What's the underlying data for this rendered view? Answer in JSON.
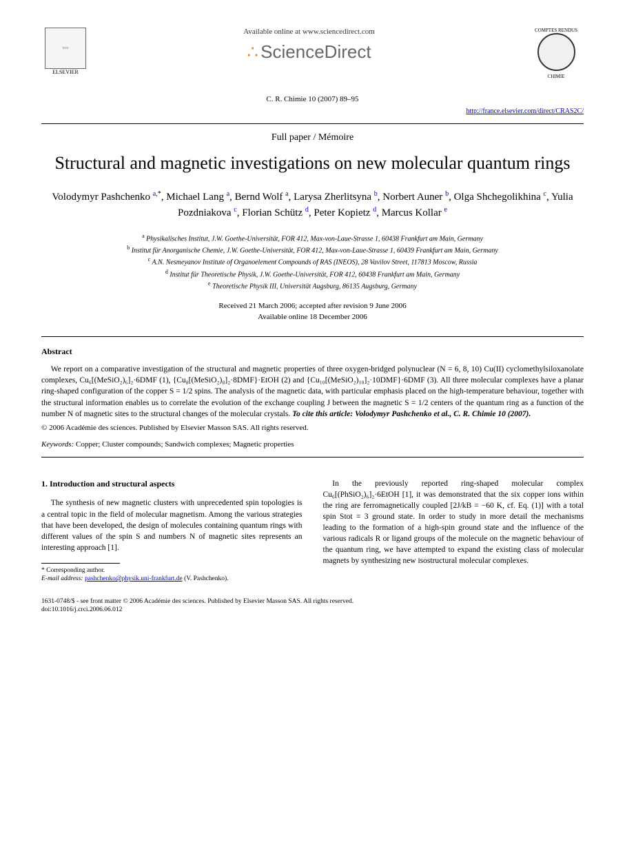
{
  "header": {
    "elsevier_label": "ELSEVIER",
    "available_online": "Available online at www.sciencedirect.com",
    "sd_brand": "ScienceDirect",
    "journal_top": "COMPTES RENDUS",
    "journal_bottom": "CHIMIE",
    "citation": "C. R. Chimie 10 (2007) 89–95",
    "journal_url": "http://france.elsevier.com/direct/CRAS2C/"
  },
  "paper_type": "Full paper / Mémoire",
  "title": "Structural and magnetic investigations on new molecular quantum rings",
  "authors_html": "Volodymyr Pashchenko <sup>a,</sup><sup class=\"star\">*</sup>, Michael Lang <sup>a</sup>, Bernd Wolf <sup>a</sup>, Larysa Zherlitsyna <sup>b</sup>, Norbert Auner <sup>b</sup>, Olga Shchegolikhina <sup>c</sup>, Yulia Pozdniakova <sup>c</sup>, Florian Schütz <sup>d</sup>, Peter Kopietz <sup>d</sup>, Marcus Kollar <sup>e</sup>",
  "affiliations": {
    "a": "Physikalisches Institut, J.W. Goethe-Universität, FOR 412, Max-von-Laue-Strasse 1, 60438 Frankfurt am Main, Germany",
    "b": "Institut für Anorganische Chemie, J.W. Goethe-Universität, FOR 412, Max-von-Laue-Strasse 1, 60439 Frankfurt am Main, Germany",
    "c": "A.N. Nesmeyanov Institute of Organoelement Compounds of RAS (INEOS), 28 Vavilov Street, 117813 Moscow, Russia",
    "d": "Institut für Theoretische Physik, J.W. Goethe-Universität, FOR 412, 60438 Frankfurt am Main, Germany",
    "e": "Theoretische Physik III, Universität Augsburg, 86135 Augsburg, Germany"
  },
  "dates": {
    "received": "Received 21 March 2006; accepted after revision 9 June 2006",
    "online": "Available online 18 December 2006"
  },
  "abstract": {
    "heading": "Abstract",
    "text": "We report on a comparative investigation of the structural and magnetic properties of three oxygen-bridged polynuclear (N = 6, 8, 10) Cu(II) cyclomethylsiloxanolate complexes, Cu₆[(MeSiO₂)₆]₂·6DMF (1), {Cu₈[(MeSiO₂)₈]₂·8DMF}·EtOH (2) and {Cu₁₀[(MeSiO₂)₁₀]₂·10DMF}·6DMF (3). All three molecular complexes have a planar ring-shaped configuration of the copper S = 1/2 spins. The analysis of the magnetic data, with particular emphasis placed on the high-temperature behaviour, together with the structural information enables us to correlate the evolution of the exchange coupling J between the magnetic S = 1/2 centers of the quantum ring as a function of the number N of magnetic sites to the structural changes of the molecular crystals.",
    "cite_this": "To cite this article: Volodymyr Pashchenko et al., C. R. Chimie 10 (2007).",
    "copyright": "© 2006 Académie des sciences. Published by Elsevier Masson SAS. All rights reserved."
  },
  "keywords": {
    "label": "Keywords:",
    "text": "Copper; Cluster compounds; Sandwich complexes; Magnetic properties"
  },
  "body": {
    "section1_heading": "1. Introduction and structural aspects",
    "col1_p1": "The synthesis of new magnetic clusters with unprecedented spin topologies is a central topic in the field of molecular magnetism. Among the various strategies that have been developed, the design of molecules containing quantum rings with different values of the spin S and numbers N of magnetic sites represents an interesting approach [1].",
    "col2_p1": "In the previously reported ring-shaped molecular complex Cu₆[(PhSiO₂)₆]₂·6EtOH [1], it was demonstrated that the six copper ions within the ring are ferromagnetically coupled [2J/kB = −60 K, cf. Eq. (1)] with a total spin Stot = 3 ground state. In order to study in more detail the mechanisms leading to the formation of a high-spin ground state and the influence of the various radicals R or ligand groups of the molecule on the magnetic behaviour of the quantum ring, we have attempted to expand the existing class of molecular magnets by synthesizing new isostructural molecular complexes."
  },
  "footnote": {
    "corresponding": "* Corresponding author.",
    "email_label": "E-mail address:",
    "email": "pashchenko@physik.uni-frankfurt.de",
    "email_name": "(V. Pashchenko)."
  },
  "bottom": {
    "issn": "1631-0748/$ - see front matter © 2006 Académie des sciences. Published by Elsevier Masson SAS. All rights reserved.",
    "doi": "doi:10.1016/j.crci.2006.06.012"
  },
  "colors": {
    "text": "#000000",
    "link": "#0000cc",
    "sd_orange": "#f58220",
    "sd_gray": "#666666",
    "background": "#ffffff"
  },
  "typography": {
    "title_fontsize": 26,
    "authors_fontsize": 15,
    "body_fontsize": 11.5,
    "footnote_fontsize": 9.5
  }
}
